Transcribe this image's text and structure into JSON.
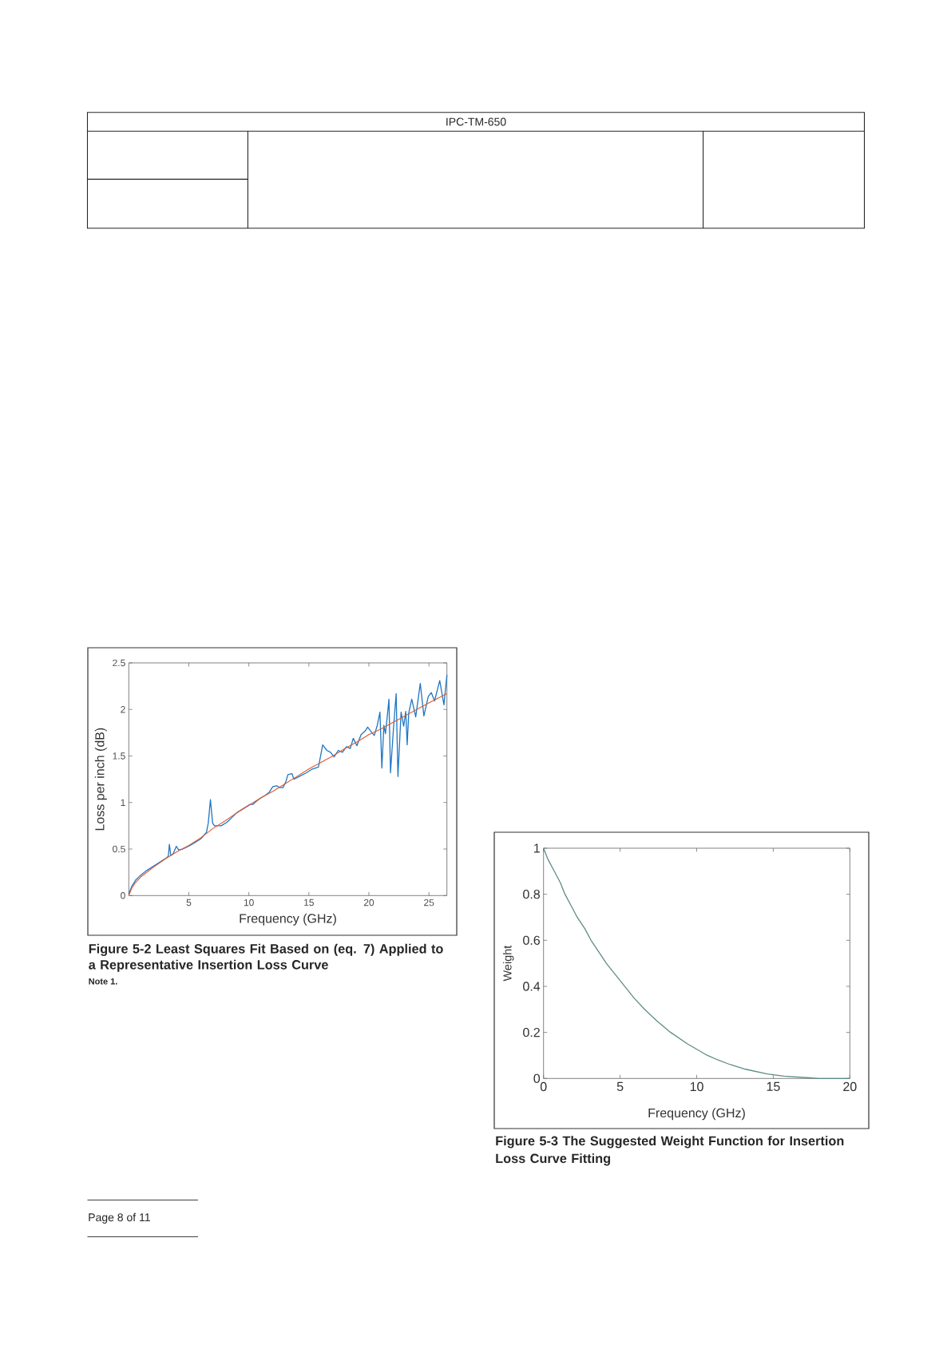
{
  "chart_data": [
    {
      "type": "line",
      "title": "Figure 5-2 Least Squares Fit Based on (eq. 7) Applied to a Representative Insertion Loss Curve",
      "xlabel": "Frequency (GHz)",
      "ylabel": "Loss per inch (dB)",
      "annotations": [
        "Note 1.",
        "IPC-TM-650",
        "Page 8 of 11"
      ],
      "xlim": [
        0,
        26.5
      ],
      "ylim": [
        0,
        2.5
      ],
      "xticks": [
        5,
        10,
        15,
        20,
        25
      ],
      "yticks": [
        0,
        0.5,
        1,
        1.5,
        2,
        2.5
      ],
      "series": [
        {
          "color": "#1f77c4",
          "x": [
            0,
            0.25,
            0.6,
            1.0,
            1.5,
            2.0,
            2.6,
            3.2,
            3.3,
            3.38,
            3.5,
            3.7,
            3.96,
            4.15,
            4.5,
            5.0,
            5.5,
            6.0,
            6.47,
            6.62,
            6.8,
            6.98,
            7.13,
            7.7,
            8.2,
            8.6,
            9.0,
            9.5,
            10.1,
            10.35,
            10.6,
            11.0,
            11.4,
            11.7,
            12.0,
            12.3,
            12.6,
            12.85,
            13.1,
            13.25,
            13.6,
            13.75,
            14.2,
            14.8,
            15.3,
            15.8,
            16.15,
            16.5,
            16.8,
            17.1,
            17.45,
            17.8,
            18.13,
            18.45,
            18.7,
            19.0,
            19.35,
            19.7,
            19.9,
            20.25,
            20.45,
            20.7,
            20.92,
            21.08,
            21.25,
            21.38,
            21.55,
            21.67,
            21.8,
            22.05,
            22.27,
            22.42,
            22.68,
            22.9,
            23.07,
            23.19,
            23.32,
            23.57,
            23.9,
            24.28,
            24.58,
            24.95,
            25.2,
            25.47,
            25.9,
            26.25,
            26.5
          ],
          "values": [
            0.02,
            0.1,
            0.17,
            0.22,
            0.27,
            0.31,
            0.36,
            0.41,
            0.43,
            0.55,
            0.43,
            0.45,
            0.53,
            0.49,
            0.5,
            0.53,
            0.57,
            0.61,
            0.68,
            0.78,
            1.03,
            0.78,
            0.75,
            0.75,
            0.79,
            0.84,
            0.89,
            0.93,
            0.98,
            0.98,
            1.01,
            1.05,
            1.08,
            1.11,
            1.17,
            1.18,
            1.16,
            1.16,
            1.23,
            1.3,
            1.31,
            1.25,
            1.28,
            1.32,
            1.36,
            1.38,
            1.62,
            1.56,
            1.54,
            1.49,
            1.56,
            1.54,
            1.6,
            1.58,
            1.69,
            1.61,
            1.73,
            1.77,
            1.81,
            1.75,
            1.72,
            1.83,
            1.97,
            1.37,
            1.83,
            1.74,
            1.95,
            2.11,
            1.32,
            1.8,
            2.17,
            1.28,
            1.97,
            1.82,
            1.98,
            1.62,
            1.96,
            2.11,
            1.92,
            2.28,
            1.93,
            2.14,
            2.18,
            2.09,
            2.31,
            2.05,
            2.37
          ]
        },
        {
          "color": "#e05a2e",
          "x": [
            0,
            0.25,
            0.5,
            1,
            2,
            3,
            4,
            5,
            6,
            7,
            8,
            9,
            10,
            11,
            12,
            13,
            14,
            15,
            16,
            17,
            18,
            19,
            20,
            21,
            22,
            23,
            24,
            25,
            26.5
          ],
          "values": [
            0,
            0.08,
            0.13,
            0.2,
            0.3,
            0.39,
            0.47,
            0.54,
            0.62,
            0.72,
            0.8,
            0.89,
            0.97,
            1.05,
            1.12,
            1.2,
            1.28,
            1.36,
            1.43,
            1.5,
            1.58,
            1.65,
            1.73,
            1.79,
            1.86,
            1.93,
            2.0,
            2.07,
            2.17
          ]
        }
      ]
    },
    {
      "type": "line",
      "title": "Figure 5-3 The Suggested Weight Function for Insertion Loss Curve Fitting",
      "xlabel": "Frequency (GHz)",
      "ylabel": "Weight",
      "xlim": [
        0,
        20
      ],
      "ylim": [
        0,
        1
      ],
      "xticks": [
        0,
        5,
        10,
        15,
        20
      ],
      "yticks": [
        0,
        0.2,
        0.4,
        0.6,
        0.8,
        1
      ],
      "series": [
        {
          "color": "#5e8c86",
          "x": [
            0,
            0.3,
            0.7,
            1.1,
            1.4,
            1.8,
            2.2,
            2.7,
            3.1,
            3.6,
            4.1,
            4.7,
            5.3,
            5.9,
            6.6,
            7.4,
            8.3,
            9.4,
            10.7,
            11.4,
            12.2,
            13.2,
            14.6,
            15.7,
            18,
            20
          ],
          "values": [
            1,
            0.95,
            0.9,
            0.85,
            0.8,
            0.75,
            0.7,
            0.65,
            0.6,
            0.55,
            0.5,
            0.45,
            0.4,
            0.35,
            0.3,
            0.25,
            0.2,
            0.15,
            0.1,
            0.08,
            0.06,
            0.04,
            0.02,
            0.01,
            0,
            0
          ]
        }
      ]
    }
  ]
}
